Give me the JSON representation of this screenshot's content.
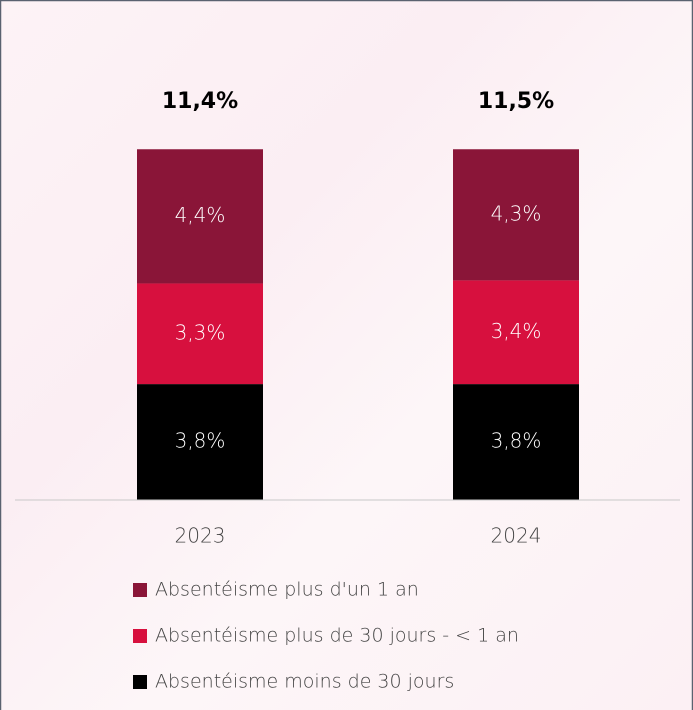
{
  "chart_data": {
    "type": "stacked_bar",
    "categories": [
      "2023",
      "2024"
    ],
    "series": [
      {
        "name": "Absentéisme moins de 30 jours",
        "color": "#000000",
        "values": [
          3.8,
          3.8
        ],
        "value_labels": [
          "3,8%",
          "3,8%"
        ]
      },
      {
        "name": "Absentéisme plus de 30 jours - < 1 an",
        "color": "#d7103e",
        "values": [
          3.3,
          3.4
        ],
        "value_labels": [
          "3,3%",
          "3,4%"
        ]
      },
      {
        "name": "Absentéisme plus d'un 1 an",
        "color": "#8a1538",
        "values": [
          4.4,
          4.3
        ],
        "value_labels": [
          "4,4%",
          "4,3%"
        ]
      }
    ],
    "annotations": [
      "11,4%",
      "11,5%"
    ],
    "ylim": [
      0,
      12
    ],
    "legend": "bottom"
  }
}
